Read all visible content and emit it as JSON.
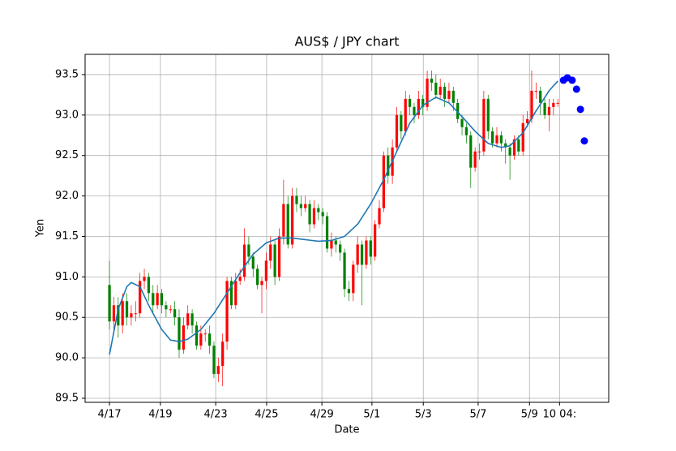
{
  "chart_data": {
    "type": "candlestick",
    "title": "AUS$ / JPY chart",
    "x_label": "Date",
    "y_label": "Yen",
    "xlim": [
      -5.6,
      114.7
    ],
    "ylim": [
      89.45,
      93.75
    ],
    "xticks": [
      {
        "value": 0,
        "label": "4/17"
      },
      {
        "value": 11.7,
        "label": "4/19"
      },
      {
        "value": 24.4,
        "label": "4/23"
      },
      {
        "value": 36.1,
        "label": "4/25"
      },
      {
        "value": 48.8,
        "label": "4/29"
      },
      {
        "value": 60.3,
        "label": "5/1"
      },
      {
        "value": 72.1,
        "label": "5/3"
      },
      {
        "value": 84.7,
        "label": "5/7"
      },
      {
        "value": 96.5,
        "label": "5/9"
      },
      {
        "value": 103.4,
        "label": "10 04:"
      }
    ],
    "yticks": [
      89.5,
      {
        "value": 90,
        "label": "90.0"
      },
      90.5,
      {
        "value": 91,
        "label": "91.0"
      },
      91.5,
      {
        "value": 92,
        "label": "92.0"
      },
      92.5,
      {
        "value": 93,
        "label": "93.0"
      },
      93.5
    ],
    "grid": true,
    "candles": {
      "up_color": "red",
      "down_color": "green",
      "x": [
        0,
        1,
        2,
        3,
        4,
        5,
        6,
        7,
        8,
        9,
        10,
        11,
        12,
        13,
        14,
        15,
        16,
        17,
        18,
        19,
        20,
        21,
        22,
        23,
        24,
        25,
        26,
        27,
        28,
        29,
        30,
        31,
        32,
        33,
        34,
        35,
        36,
        37,
        38,
        39,
        40,
        41,
        42,
        43,
        44,
        45,
        46,
        47,
        48,
        49,
        50,
        51,
        52,
        53,
        54,
        55,
        56,
        57,
        58,
        59,
        60,
        61,
        62,
        63,
        64,
        65,
        66,
        67,
        68,
        69,
        70,
        71,
        72,
        73,
        74,
        75,
        76,
        77,
        78,
        79,
        80,
        81,
        82,
        83,
        84,
        85,
        86,
        87,
        88,
        89,
        90,
        91,
        92,
        93,
        94,
        95,
        96,
        97,
        98,
        99,
        100,
        101,
        102,
        103
      ],
      "open": [
        90.9,
        90.45,
        90.65,
        90.4,
        90.7,
        90.5,
        90.55,
        90.55,
        90.95,
        91.0,
        90.8,
        90.65,
        90.8,
        90.65,
        90.6,
        90.6,
        90.5,
        90.1,
        90.4,
        90.55,
        90.4,
        90.15,
        90.3,
        90.3,
        90.15,
        89.8,
        89.9,
        90.2,
        90.95,
        90.65,
        90.95,
        91.0,
        91.4,
        91.25,
        91.1,
        90.9,
        90.95,
        91.2,
        91.4,
        91.0,
        91.5,
        91.9,
        91.4,
        92.0,
        91.9,
        91.85,
        91.9,
        91.65,
        91.85,
        91.8,
        91.75,
        91.35,
        91.45,
        91.4,
        91.3,
        90.85,
        90.8,
        91.15,
        91.4,
        91.15,
        91.45,
        91.25,
        91.65,
        91.85,
        92.5,
        92.25,
        92.6,
        93.0,
        92.8,
        93.2,
        93.1,
        93.0,
        93.2,
        93.1,
        93.45,
        93.4,
        93.25,
        93.35,
        93.2,
        93.3,
        93.15,
        92.95,
        92.85,
        92.75,
        92.35,
        92.55,
        92.55,
        93.2,
        92.8,
        92.65,
        92.75,
        92.65,
        92.6,
        92.5,
        92.7,
        92.55,
        92.9,
        92.95,
        93.3,
        93.3,
        93.15,
        93.0,
        93.1,
        93.15
      ],
      "close": [
        90.45,
        90.65,
        90.4,
        90.7,
        90.5,
        90.55,
        90.55,
        90.95,
        91.0,
        90.8,
        90.65,
        90.8,
        90.65,
        90.6,
        90.6,
        90.5,
        90.1,
        90.4,
        90.55,
        90.4,
        90.15,
        90.3,
        90.3,
        90.15,
        89.8,
        89.9,
        90.2,
        90.95,
        90.65,
        90.95,
        91.0,
        91.4,
        91.25,
        91.1,
        90.9,
        90.95,
        91.2,
        91.4,
        91.0,
        91.5,
        91.9,
        91.4,
        92.0,
        91.9,
        91.85,
        91.9,
        91.65,
        91.85,
        91.8,
        91.75,
        91.35,
        91.45,
        91.4,
        91.3,
        90.85,
        90.8,
        91.15,
        91.4,
        91.15,
        91.45,
        91.25,
        91.65,
        91.85,
        92.5,
        92.25,
        92.6,
        93.0,
        92.8,
        93.2,
        93.1,
        93.0,
        93.2,
        93.1,
        93.45,
        93.4,
        93.25,
        93.35,
        93.2,
        93.3,
        93.15,
        92.95,
        92.85,
        92.75,
        92.35,
        92.55,
        92.55,
        93.2,
        92.8,
        92.65,
        92.75,
        92.65,
        92.6,
        92.5,
        92.7,
        92.55,
        92.9,
        92.95,
        93.3,
        93.3,
        93.15,
        93.0,
        93.1,
        93.15,
        93.15
      ],
      "high": [
        91.2,
        90.75,
        90.75,
        90.8,
        90.8,
        90.65,
        90.7,
        91.05,
        91.1,
        91.05,
        90.9,
        90.9,
        90.85,
        90.7,
        90.65,
        90.7,
        90.6,
        90.5,
        90.65,
        90.6,
        90.45,
        90.4,
        90.35,
        90.4,
        90.2,
        90.0,
        90.3,
        91.0,
        91.0,
        91.05,
        91.1,
        91.6,
        91.5,
        91.3,
        91.15,
        91.0,
        91.3,
        91.5,
        91.45,
        91.6,
        92.2,
        92.0,
        92.1,
        92.1,
        92.0,
        92.0,
        91.95,
        91.95,
        91.9,
        91.85,
        91.8,
        91.55,
        91.5,
        91.45,
        91.35,
        90.95,
        91.2,
        91.5,
        91.45,
        91.5,
        91.5,
        91.7,
        91.95,
        92.55,
        92.6,
        92.7,
        93.1,
        93.05,
        93.3,
        93.25,
        93.15,
        93.3,
        93.25,
        93.55,
        93.55,
        93.5,
        93.45,
        93.4,
        93.4,
        93.35,
        93.2,
        93.0,
        92.9,
        92.8,
        92.6,
        92.65,
        93.3,
        93.25,
        92.85,
        92.85,
        92.8,
        92.7,
        92.65,
        92.75,
        92.75,
        93.0,
        93.05,
        93.55,
        93.4,
        93.35,
        93.2,
        93.2,
        93.2,
        93.2
      ],
      "low": [
        90.35,
        90.3,
        90.25,
        90.3,
        90.4,
        90.4,
        90.45,
        90.5,
        90.85,
        90.7,
        90.55,
        90.6,
        90.55,
        90.5,
        90.55,
        90.4,
        90.0,
        90.05,
        90.35,
        90.3,
        90.1,
        90.1,
        90.2,
        90.05,
        89.75,
        89.7,
        89.65,
        90.1,
        90.6,
        90.6,
        90.9,
        90.95,
        91.15,
        91.0,
        90.85,
        90.55,
        90.85,
        91.1,
        90.9,
        90.95,
        91.4,
        91.35,
        91.35,
        91.8,
        91.75,
        91.8,
        91.55,
        91.6,
        91.7,
        91.65,
        91.3,
        91.25,
        91.3,
        91.2,
        90.75,
        90.7,
        90.7,
        91.05,
        90.65,
        91.1,
        91.15,
        91.2,
        91.6,
        91.8,
        92.15,
        92.15,
        92.55,
        92.7,
        92.75,
        93.0,
        92.9,
        92.95,
        93.0,
        93.05,
        93.3,
        93.2,
        93.2,
        93.1,
        93.15,
        93.05,
        92.9,
        92.75,
        92.65,
        92.1,
        92.3,
        92.45,
        92.5,
        92.7,
        92.6,
        92.6,
        92.55,
        92.4,
        92.2,
        92.45,
        92.5,
        92.5,
        92.85,
        92.9,
        93.2,
        93.0,
        92.95,
        92.8,
        93.0,
        93.1
      ]
    },
    "trend": {
      "color": "#1f77b4",
      "x": [
        0,
        2,
        4,
        5,
        7,
        9,
        12,
        14,
        16,
        18,
        21,
        24,
        27,
        30,
        33,
        36,
        39,
        42,
        45,
        48,
        51,
        54,
        57,
        60,
        63,
        66,
        69,
        72,
        75,
        78,
        81,
        84,
        87,
        90,
        92,
        95,
        98,
        101,
        103
      ],
      "values": [
        90.04,
        90.6,
        90.88,
        90.93,
        90.88,
        90.65,
        90.35,
        90.22,
        90.2,
        90.23,
        90.35,
        90.55,
        90.8,
        91.05,
        91.28,
        91.42,
        91.48,
        91.48,
        91.46,
        91.44,
        91.45,
        91.5,
        91.65,
        91.9,
        92.2,
        92.55,
        92.9,
        93.12,
        93.22,
        93.15,
        92.98,
        92.8,
        92.65,
        92.6,
        92.62,
        92.78,
        93.05,
        93.3,
        93.42
      ]
    },
    "forecast": {
      "color": "blue",
      "x": [
        104.3,
        105.2,
        106.3,
        107.3,
        108.2,
        109.1
      ],
      "values": [
        93.43,
        93.46,
        93.43,
        93.32,
        93.07,
        92.68
      ]
    }
  }
}
